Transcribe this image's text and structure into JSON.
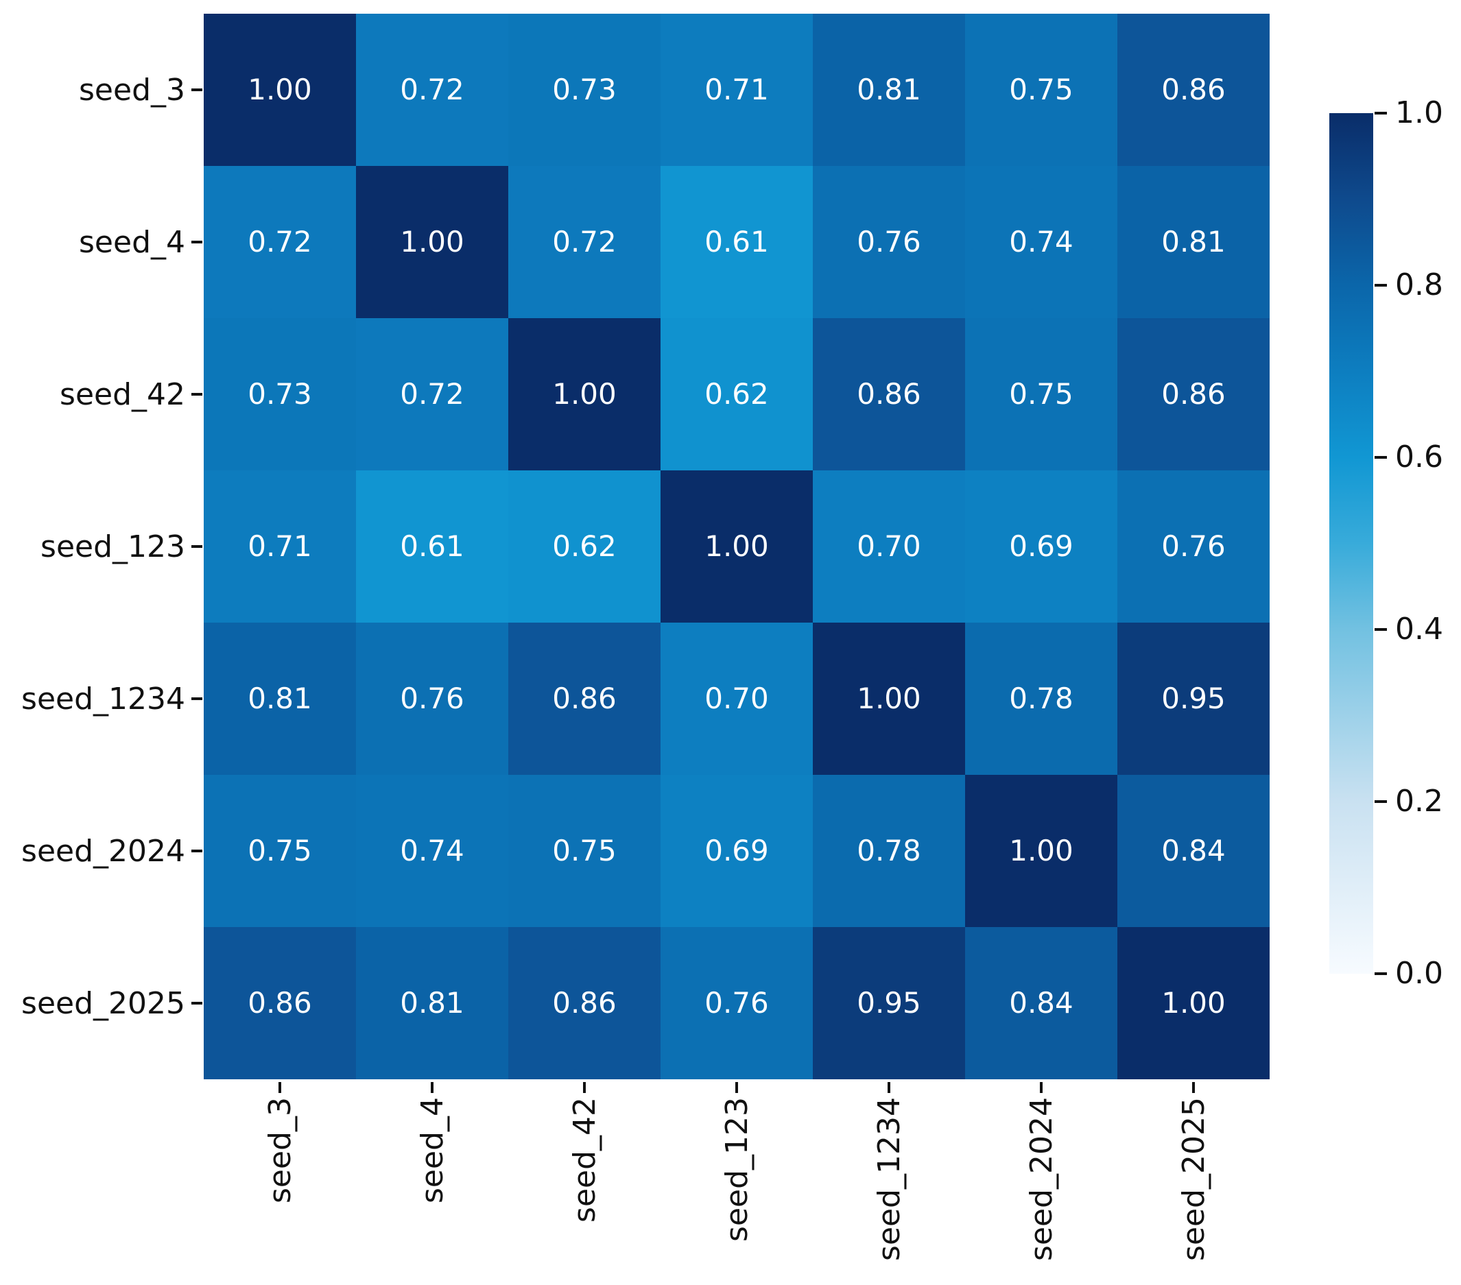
{
  "chart_data": {
    "type": "heatmap",
    "title": "",
    "categories": [
      "seed_3",
      "seed_4",
      "seed_42",
      "seed_123",
      "seed_1234",
      "seed_2024",
      "seed_2025"
    ],
    "matrix": [
      [
        1.0,
        0.72,
        0.73,
        0.71,
        0.81,
        0.75,
        0.86
      ],
      [
        0.72,
        1.0,
        0.72,
        0.61,
        0.76,
        0.74,
        0.81
      ],
      [
        0.73,
        0.72,
        1.0,
        0.62,
        0.86,
        0.75,
        0.86
      ],
      [
        0.71,
        0.61,
        0.62,
        1.0,
        0.7,
        0.69,
        0.76
      ],
      [
        0.81,
        0.76,
        0.86,
        0.7,
        1.0,
        0.78,
        0.95
      ],
      [
        0.75,
        0.74,
        0.75,
        0.69,
        0.78,
        1.0,
        0.84
      ],
      [
        0.86,
        0.81,
        0.86,
        0.76,
        0.95,
        0.84,
        1.0
      ]
    ],
    "value_decimals": 2,
    "annotation_text_color": "#ffffff",
    "axis_label_color": "#111111",
    "colormap": {
      "name": "Blues",
      "stops": [
        [
          0.0,
          "#f7fbff"
        ],
        [
          0.2,
          "#c9e1f1"
        ],
        [
          0.4,
          "#72c1e1"
        ],
        [
          0.5,
          "#38abda"
        ],
        [
          0.6,
          "#1197d3"
        ],
        [
          0.7,
          "#0d7ec0"
        ],
        [
          0.8,
          "#0b66aa"
        ],
        [
          0.9,
          "#0e4a8d"
        ],
        [
          1.0,
          "#0a2d69"
        ]
      ]
    },
    "colorbar": {
      "min": 0.0,
      "max": 1.0,
      "tick_labels": [
        "1.0",
        "0.8",
        "0.6",
        "0.4",
        "0.2",
        "0.0"
      ],
      "tick_values": [
        1.0,
        0.8,
        0.6,
        0.4,
        0.2,
        0.0
      ],
      "position": "right"
    },
    "grid": false,
    "legend": false
  }
}
